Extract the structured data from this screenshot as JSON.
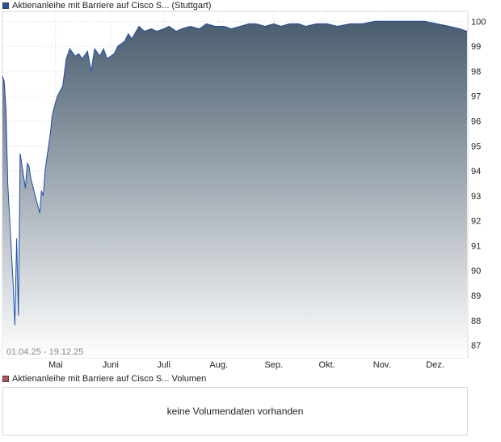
{
  "price_legend": {
    "label": "Aktienanleihe mit Barriere auf Cisco S... (Stuttgart)",
    "color": "#1f4fa8"
  },
  "volume_legend": {
    "label": "Aktienanleihe mit Barriere auf Cisco S... Volumen",
    "color": "#c0505a"
  },
  "volume_panel": {
    "message": "keine Volumendaten vorhanden"
  },
  "chart_data": {
    "type": "area",
    "date_range_label": "01.04.25 - 19.12.25",
    "x_ticks": [
      "Mai",
      "Juni",
      "Juli",
      "Aug.",
      "Sep.",
      "Okt.",
      "Nov.",
      "Dez."
    ],
    "y_ticks": [
      87,
      88,
      89,
      90,
      91,
      92,
      93,
      94,
      95,
      96,
      97,
      98,
      99,
      100
    ],
    "ylim": [
      86.5,
      100.4
    ],
    "xlim": [
      "2025-04-01",
      "2025-12-19"
    ],
    "grid": true,
    "line_color": "#1f4fa8",
    "fill_top_color": "#4a5d6e",
    "fill_bottom_color": "#ffffff",
    "series": [
      {
        "x": [
          "2025-04-01",
          "2025-04-02",
          "2025-04-03",
          "2025-04-04",
          "2025-04-07",
          "2025-04-08",
          "2025-04-09",
          "2025-04-10",
          "2025-04-11",
          "2025-04-14",
          "2025-04-15",
          "2025-04-16",
          "2025-04-17",
          "2025-04-22",
          "2025-04-23",
          "2025-04-24",
          "2025-04-25",
          "2025-04-28",
          "2025-04-29",
          "2025-04-30",
          "2025-05-02",
          "2025-05-05",
          "2025-05-07",
          "2025-05-09",
          "2025-05-12",
          "2025-05-14",
          "2025-05-16",
          "2025-05-19",
          "2025-05-21",
          "2025-05-23",
          "2025-05-26",
          "2025-05-28",
          "2025-05-30",
          "2025-06-03",
          "2025-06-05",
          "2025-06-09",
          "2025-06-11",
          "2025-06-13",
          "2025-06-17",
          "2025-06-20",
          "2025-06-24",
          "2025-06-27",
          "2025-07-01",
          "2025-07-04",
          "2025-07-08",
          "2025-07-11",
          "2025-07-16",
          "2025-07-21",
          "2025-07-25",
          "2025-07-30",
          "2025-08-04",
          "2025-08-08",
          "2025-08-13",
          "2025-08-18",
          "2025-08-22",
          "2025-08-27",
          "2025-09-01",
          "2025-09-05",
          "2025-09-10",
          "2025-09-15",
          "2025-09-19",
          "2025-09-25",
          "2025-10-01",
          "2025-10-07",
          "2025-10-14",
          "2025-10-21",
          "2025-10-28",
          "2025-11-04",
          "2025-11-11",
          "2025-11-18",
          "2025-11-25",
          "2025-12-02",
          "2025-12-09",
          "2025-12-15",
          "2025-12-19"
        ],
        "y": [
          97.8,
          97.6,
          96.5,
          93.5,
          89.5,
          87.8,
          91.3,
          88.2,
          94.7,
          93.3,
          94.3,
          94.2,
          93.7,
          92.3,
          93.2,
          93.0,
          94.0,
          95.5,
          96.2,
          96.5,
          97.0,
          97.4,
          98.5,
          98.9,
          98.6,
          98.7,
          98.5,
          98.8,
          98.0,
          98.9,
          98.6,
          98.9,
          98.5,
          98.7,
          99.0,
          99.2,
          99.5,
          99.3,
          99.8,
          99.6,
          99.7,
          99.6,
          99.7,
          99.8,
          99.6,
          99.7,
          99.8,
          99.7,
          99.9,
          99.8,
          99.8,
          99.7,
          99.8,
          99.9,
          99.9,
          99.8,
          99.9,
          99.8,
          99.9,
          99.9,
          99.8,
          99.9,
          99.9,
          99.8,
          99.9,
          99.9,
          100.0,
          100.0,
          100.0,
          100.0,
          100.0,
          99.9,
          99.8,
          99.7,
          99.6
        ]
      }
    ]
  }
}
